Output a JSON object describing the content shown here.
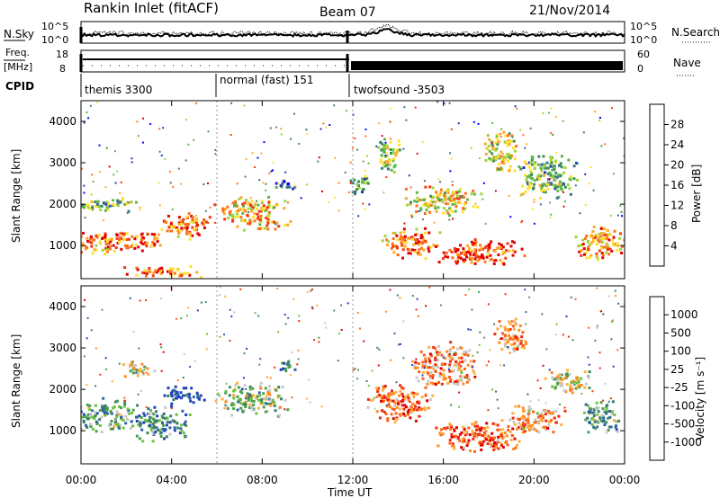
{
  "header": {
    "station": "Rankin Inlet (fitACF)",
    "beam": "Beam 07",
    "date": "21/Nov/2014"
  },
  "noise_panel": {
    "left_label": "N.Sky",
    "right_label": "N.Search",
    "left_ticks": [
      "10^5",
      "10^0"
    ],
    "right_ticks": [
      "10^5",
      "10^0"
    ]
  },
  "freq_panel": {
    "left_label_top": "Freq.",
    "left_label_unit": "[MHz]",
    "right_label": "Nave",
    "left_ticks": [
      "18",
      "8"
    ],
    "right_ticks": [
      "60",
      "0"
    ]
  },
  "cpid": {
    "label": "CPID",
    "segments": [
      {
        "name": "themis 3300",
        "start_hour": 0
      },
      {
        "name": "normal (fast) 151",
        "start_hour": 6
      },
      {
        "name": "twofsound -3503",
        "start_hour": 12
      }
    ]
  },
  "time_axis": {
    "label": "Time UT",
    "ticks": [
      "00:00",
      "04:00",
      "08:00",
      "12:00",
      "16:00",
      "20:00",
      "00:00"
    ]
  },
  "panels": {
    "power": {
      "ylabel": "Slant Range [km]",
      "yticks": [
        "4000",
        "3000",
        "2000",
        "1000"
      ],
      "colorbar_label": "Power [dB]",
      "colorbar_ticks": [
        "28",
        "24",
        "20",
        "16",
        "12",
        "8",
        "4"
      ],
      "colors": [
        "#0000ff",
        "#2233bb",
        "#3b6e8c",
        "#3f8f55",
        "#5cb84a",
        "#9fd53a",
        "#ffe02a",
        "#ffa82a",
        "#ff7018",
        "#f03a10",
        "#e00000"
      ]
    },
    "velocity": {
      "ylabel": "Slant Range [km]",
      "yticks": [
        "4000",
        "3000",
        "2000",
        "1000"
      ],
      "colorbar_label": "Velocity [m s⁻¹]",
      "colorbar_ticks": [
        "1000",
        "500",
        "100",
        "25",
        "-25",
        "-100",
        "-500",
        "-1000"
      ],
      "colors": [
        "#1f3fbf",
        "#2f64a0",
        "#3b7f66",
        "#4c9e4c",
        "#6bc23a",
        "#c8c8c8",
        "#ffb040",
        "#ff8a20",
        "#ff6018",
        "#ee2a10",
        "#e00000"
      ]
    }
  },
  "chart_data": {
    "type": "heatmap",
    "x_unit": "hours UT",
    "xlim": [
      0,
      24
    ],
    "ylim": [
      200,
      4500
    ],
    "power_blobs": [
      {
        "t": 0.6,
        "r": 1100,
        "dt": 1.5,
        "dr": 300,
        "v": 26
      },
      {
        "t": 2.4,
        "r": 1150,
        "dt": 1.2,
        "dr": 280,
        "v": 28
      },
      {
        "t": 4.5,
        "r": 1500,
        "dt": 1.3,
        "dr": 350,
        "v": 26
      },
      {
        "t": 1.0,
        "r": 2000,
        "dt": 1.6,
        "dr": 200,
        "v": 14
      },
      {
        "t": 7.5,
        "r": 1800,
        "dt": 1.7,
        "dr": 450,
        "v": 22
      },
      {
        "t": 3.5,
        "r": 400,
        "dt": 2.0,
        "dr": 150,
        "v": 27
      },
      {
        "t": 9.0,
        "r": 2500,
        "dt": 0.6,
        "dr": 150,
        "v": 8
      },
      {
        "t": 12.2,
        "r": 2500,
        "dt": 0.5,
        "dr": 300,
        "v": 12
      },
      {
        "t": 14.5,
        "r": 1100,
        "dt": 1.4,
        "dr": 400,
        "v": 26
      },
      {
        "t": 17.5,
        "r": 850,
        "dt": 2.2,
        "dr": 350,
        "v": 29
      },
      {
        "t": 22.8,
        "r": 1100,
        "dt": 1.2,
        "dr": 500,
        "v": 24
      },
      {
        "t": 16.0,
        "r": 2100,
        "dt": 1.8,
        "dr": 400,
        "v": 20
      },
      {
        "t": 20.5,
        "r": 2700,
        "dt": 1.5,
        "dr": 600,
        "v": 14
      },
      {
        "t": 13.5,
        "r": 3200,
        "dt": 0.6,
        "dr": 500,
        "v": 16
      },
      {
        "t": 18.5,
        "r": 3300,
        "dt": 0.8,
        "dr": 600,
        "v": 18
      }
    ],
    "velocity_blobs": [
      {
        "t": 1.0,
        "r": 1400,
        "dt": 1.6,
        "dr": 450,
        "v": 3
      },
      {
        "t": 3.5,
        "r": 1200,
        "dt": 1.4,
        "dr": 450,
        "v": 2
      },
      {
        "t": 4.5,
        "r": 1900,
        "dt": 1.0,
        "dr": 250,
        "v": 0
      },
      {
        "t": 7.5,
        "r": 1800,
        "dt": 1.7,
        "dr": 450,
        "v": 4
      },
      {
        "t": 2.5,
        "r": 2500,
        "dt": 0.8,
        "dr": 200,
        "v": 5
      },
      {
        "t": 9.0,
        "r": 2600,
        "dt": 0.6,
        "dr": 150,
        "v": 1
      },
      {
        "t": 14.0,
        "r": 1700,
        "dt": 1.6,
        "dr": 500,
        "v": 8
      },
      {
        "t": 17.5,
        "r": 900,
        "dt": 2.3,
        "dr": 400,
        "v": 8
      },
      {
        "t": 20.0,
        "r": 1300,
        "dt": 1.5,
        "dr": 400,
        "v": 7
      },
      {
        "t": 23.0,
        "r": 1400,
        "dt": 1.0,
        "dr": 450,
        "v": 3
      },
      {
        "t": 21.5,
        "r": 2200,
        "dt": 1.2,
        "dr": 300,
        "v": 5
      },
      {
        "t": 16.0,
        "r": 2600,
        "dt": 1.6,
        "dr": 600,
        "v": 7
      },
      {
        "t": 19.0,
        "r": 3300,
        "dt": 0.8,
        "dr": 500,
        "v": 7
      }
    ]
  }
}
